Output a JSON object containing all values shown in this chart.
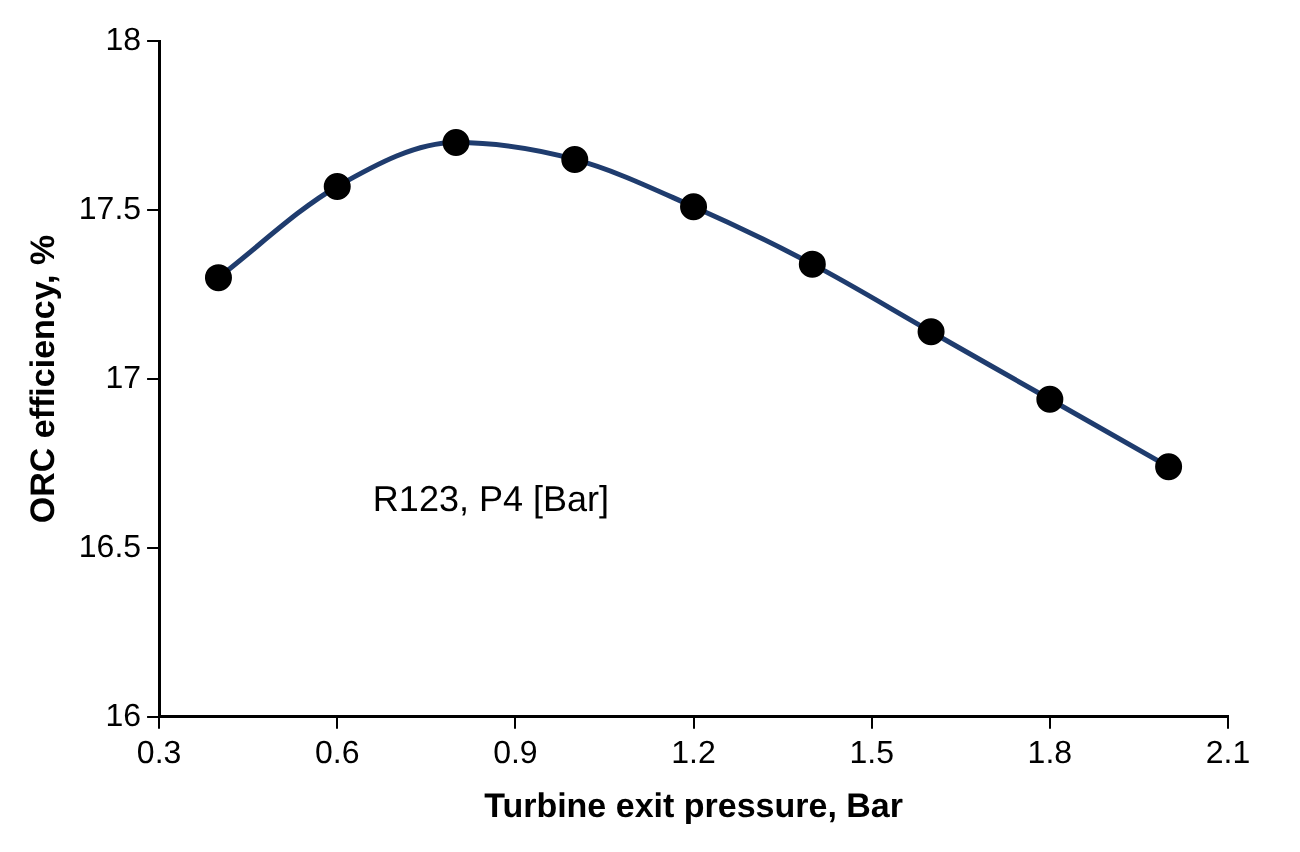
{
  "chart_data": {
    "type": "line",
    "xlabel": "Turbine exit pressure, Bar",
    "ylabel": "ORC efficiency, %",
    "annotations": [
      "R123, P4 [Bar]"
    ],
    "x": [
      0.4,
      0.6,
      0.8,
      1.0,
      1.2,
      1.4,
      1.6,
      1.8,
      2.0
    ],
    "series": [
      {
        "color": "#1f3c6e",
        "values": [
          17.3,
          17.57,
          17.7,
          17.65,
          17.51,
          17.34,
          17.14,
          16.94,
          16.74
        ]
      }
    ],
    "xlim": [
      0.3,
      2.1
    ],
    "xticks": [
      {
        "value": 0.3,
        "label": "0.3"
      },
      {
        "value": 0.6,
        "label": "0.6"
      },
      {
        "value": 0.9,
        "label": "0.9"
      },
      {
        "value": 1.2,
        "label": "1.2"
      },
      {
        "value": 1.5,
        "label": "1.5"
      },
      {
        "value": 1.8,
        "label": "1.8"
      },
      {
        "value": 2.1,
        "label": "2.1"
      }
    ],
    "ylim": [
      16,
      18
    ],
    "yticks": [
      16,
      16.5,
      17,
      17.5,
      18
    ],
    "grid": false,
    "legend": false,
    "marker": "circle",
    "line_style": "solid"
  }
}
